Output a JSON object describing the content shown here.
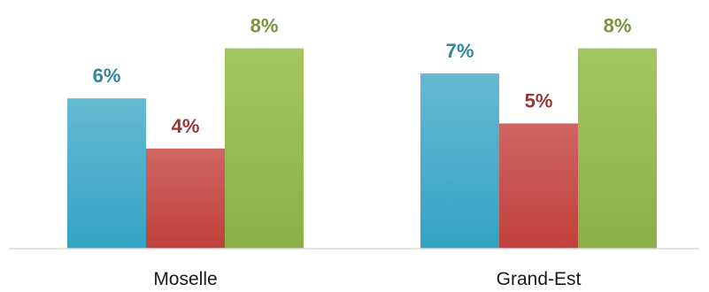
{
  "chart_data": {
    "type": "bar",
    "categories": [
      "Moselle",
      "Grand-Est"
    ],
    "series": [
      {
        "values": [
          6,
          7
        ],
        "color": "#4bacc6"
      },
      {
        "values": [
          4,
          5
        ],
        "color": "#c0504d"
      },
      {
        "values": [
          8,
          8
        ],
        "color": "#9bbb59"
      }
    ],
    "data_labels": [
      [
        "6%",
        "7%"
      ],
      [
        "4%",
        "5%"
      ],
      [
        "8%",
        "8%"
      ]
    ],
    "label_colors": [
      "#31859c",
      "#953735",
      "#77933c"
    ],
    "ylim": [
      0,
      9
    ],
    "grid": false,
    "legend": "none"
  }
}
